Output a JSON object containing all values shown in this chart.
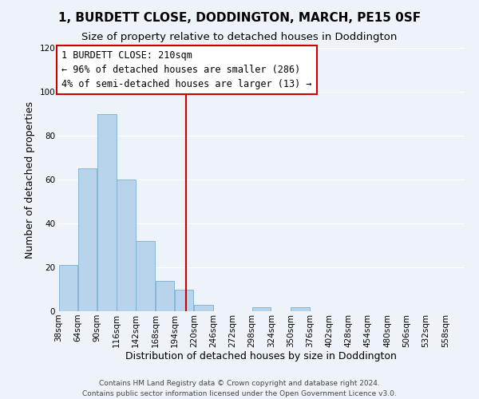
{
  "title": "1, BURDETT CLOSE, DODDINGTON, MARCH, PE15 0SF",
  "subtitle": "Size of property relative to detached houses in Doddington",
  "xlabel": "Distribution of detached houses by size in Doddington",
  "ylabel": "Number of detached properties",
  "bar_color": "#b8d4ed",
  "bar_edge_color": "#7aaed0",
  "background_color": "#eef2f9",
  "grid_color": "#ffffff",
  "bin_edges": [
    38,
    64,
    90,
    116,
    142,
    168,
    194,
    220,
    246,
    272,
    298,
    324,
    350,
    376,
    402,
    428,
    454,
    480,
    506,
    532,
    558
  ],
  "bar_heights": [
    21,
    65,
    90,
    60,
    32,
    14,
    10,
    3,
    0,
    0,
    2,
    0,
    2,
    0,
    0,
    0,
    0,
    0,
    0,
    0
  ],
  "tick_labels": [
    "38sqm",
    "64sqm",
    "90sqm",
    "116sqm",
    "142sqm",
    "168sqm",
    "194sqm",
    "220sqm",
    "246sqm",
    "272sqm",
    "298sqm",
    "324sqm",
    "350sqm",
    "376sqm",
    "402sqm",
    "428sqm",
    "454sqm",
    "480sqm",
    "506sqm",
    "532sqm",
    "558sqm"
  ],
  "vline_x": 210,
  "vline_color": "#cc0000",
  "annotation_title": "1 BURDETT CLOSE: 210sqm",
  "annotation_line1": "← 96% of detached houses are smaller (286)",
  "annotation_line2": "4% of semi-detached houses are larger (13) →",
  "annotation_box_color": "white",
  "annotation_box_edge": "#cc0000",
  "ylim": [
    0,
    120
  ],
  "yticks": [
    0,
    20,
    40,
    60,
    80,
    100,
    120
  ],
  "footnote1": "Contains HM Land Registry data © Crown copyright and database right 2024.",
  "footnote2": "Contains public sector information licensed under the Open Government Licence v3.0.",
  "title_fontsize": 11,
  "subtitle_fontsize": 9.5,
  "label_fontsize": 9,
  "tick_fontsize": 7.5,
  "annotation_fontsize": 8.5,
  "footnote_fontsize": 6.5
}
